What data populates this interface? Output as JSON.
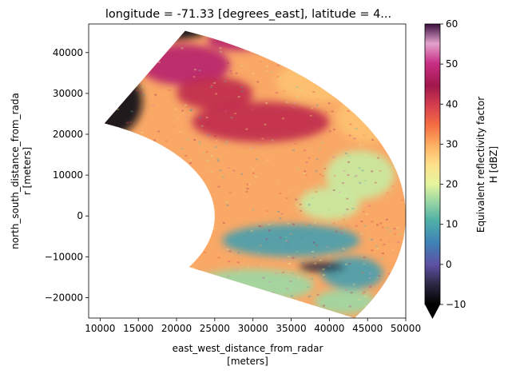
{
  "chart_data": {
    "type": "heatmap",
    "subtype": "radar_ppi_sector",
    "title": "longitude = -71.33 [degrees_east], latitude = 4...",
    "xlabel": [
      "east_west_distance_from_radar",
      "[meters]"
    ],
    "ylabel": [
      "north_south_distance_from_rada",
      "r [meters]"
    ],
    "x_ticks": [
      10000,
      15000,
      20000,
      25000,
      30000,
      35000,
      40000,
      45000,
      50000
    ],
    "x_tick_labels": [
      "10000",
      "15000",
      "20000",
      "25000",
      "30000",
      "35000",
      "40000",
      "45000",
      "50000"
    ],
    "y_ticks": [
      40000,
      30000,
      20000,
      10000,
      0,
      -10000,
      -20000
    ],
    "y_tick_labels": [
      "40000",
      "30000",
      "20000",
      "10000",
      "0",
      "−10000",
      "−20000"
    ],
    "xlim": [
      8500,
      50000
    ],
    "ylim": [
      -25000,
      47000
    ],
    "colorbar": {
      "label": [
        "Equivalent reflectivity factor",
        "H [dBZ]"
      ],
      "ticks": [
        60,
        50,
        40,
        30,
        20,
        10,
        0,
        -10
      ],
      "tick_labels": [
        "60",
        "50",
        "40",
        "30",
        "20",
        "10",
        "0",
        "−10"
      ],
      "range": [
        -10,
        60
      ],
      "extend": "min",
      "colormap": "Spectral_r"
    },
    "sector": {
      "inner_range_m": 25000,
      "outer_range_m": 50000,
      "azimuth_start_deg": 25,
      "azimuth_end_deg": 120
    },
    "reflectivity_features_dbz": [
      {
        "region": "north-west edge",
        "value": -8
      },
      {
        "region": "north centre",
        "value": 48
      },
      {
        "region": "north-east",
        "value": 28
      },
      {
        "region": "central band",
        "value": 42
      },
      {
        "region": "east",
        "value": 18
      },
      {
        "region": "south-east",
        "value": 8
      },
      {
        "region": "south-east spot",
        "value": -5
      },
      {
        "region": "south",
        "value": 15
      }
    ]
  }
}
